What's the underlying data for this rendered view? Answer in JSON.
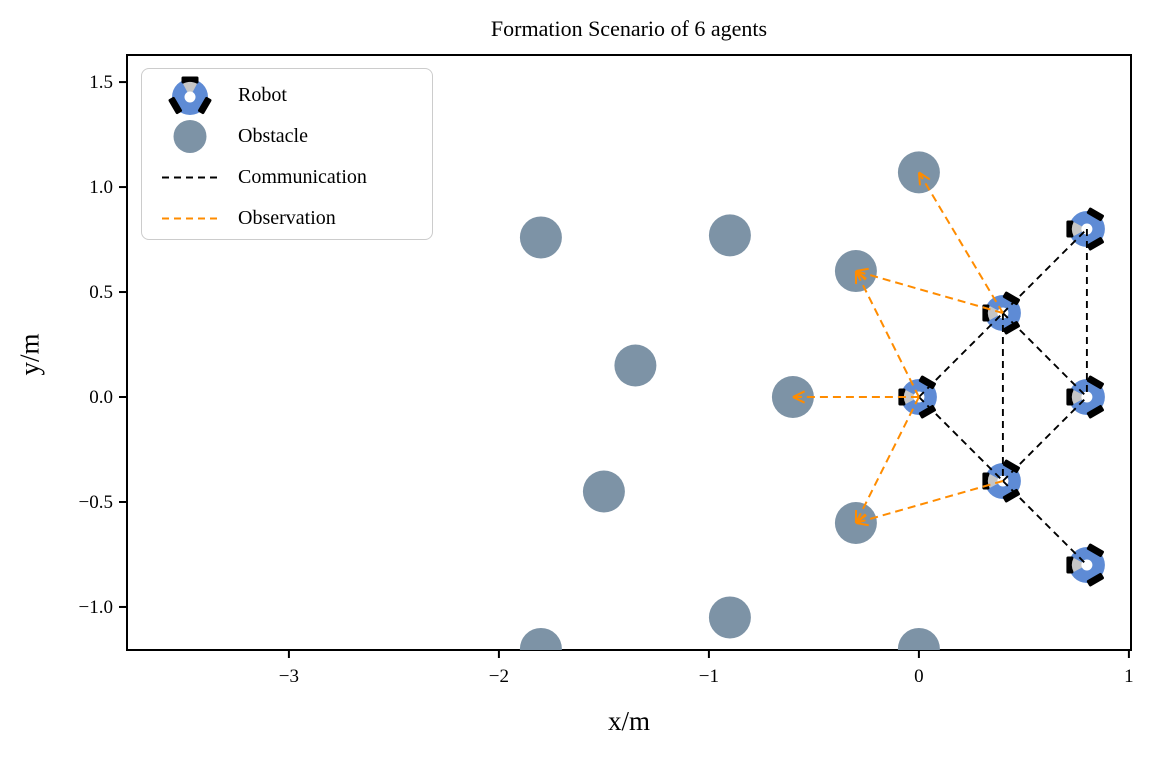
{
  "figure": {
    "title": "Formation Scenario of 6 agents",
    "xlabel": "x/m",
    "ylabel": "y/m"
  },
  "legend": {
    "items": [
      {
        "label": "Robot",
        "icon": "robot-icon"
      },
      {
        "label": "Obstacle",
        "icon": "obstacle-icon"
      },
      {
        "label": "Communication",
        "icon": "communication-line-icon"
      },
      {
        "label": "Observation",
        "icon": "observation-line-icon"
      }
    ]
  },
  "chart_data": {
    "type": "scatter",
    "title": "Formation Scenario of 6 agents",
    "xlabel": "x/m",
    "ylabel": "y/m",
    "xlim": [
      -3.771,
      1.01
    ],
    "ylim": [
      -1.205,
      1.629
    ],
    "xticks": [
      -3,
      -2,
      -1,
      0,
      1
    ],
    "xtick_labels": [
      "−3",
      "−2",
      "−1",
      "0",
      "1"
    ],
    "yticks": [
      1.5,
      1.0,
      0.5,
      0.0,
      -0.5,
      -1.0
    ],
    "ytick_labels": [
      "1.5",
      "1.0",
      "0.5",
      "0.0",
      "−0.5",
      "−1.0"
    ],
    "grid": false,
    "legend_position": "upper left",
    "robots": [
      {
        "x": 0.0,
        "y": 0.0,
        "heading_deg": 180
      },
      {
        "x": 0.4,
        "y": 0.4,
        "heading_deg": 180
      },
      {
        "x": 0.4,
        "y": -0.4,
        "heading_deg": 180
      },
      {
        "x": 0.8,
        "y": 0.8,
        "heading_deg": 180
      },
      {
        "x": 0.8,
        "y": 0.0,
        "heading_deg": 180
      },
      {
        "x": 0.8,
        "y": -0.8,
        "heading_deg": 180
      }
    ],
    "obstacles": [
      {
        "x": -1.8,
        "y": 0.76
      },
      {
        "x": -0.9,
        "y": 0.77
      },
      {
        "x": 0.0,
        "y": 1.07
      },
      {
        "x": -0.3,
        "y": 0.6
      },
      {
        "x": -1.35,
        "y": 0.15
      },
      {
        "x": -0.6,
        "y": 0.0
      },
      {
        "x": -1.5,
        "y": -0.45
      },
      {
        "x": -0.3,
        "y": -0.6
      },
      {
        "x": -0.9,
        "y": -1.05
      },
      {
        "x": -1.8,
        "y": -1.2
      },
      {
        "x": 0.0,
        "y": -1.2
      }
    ],
    "obstacle_radius_m": 0.1,
    "robot_radius_m": 0.086,
    "communication_edges": [
      [
        [
          0.0,
          0.0
        ],
        [
          0.4,
          0.4
        ]
      ],
      [
        [
          0.0,
          0.0
        ],
        [
          0.4,
          -0.4
        ]
      ],
      [
        [
          0.4,
          0.4
        ],
        [
          0.4,
          -0.4
        ]
      ],
      [
        [
          0.4,
          0.4
        ],
        [
          0.8,
          0.8
        ]
      ],
      [
        [
          0.4,
          0.4
        ],
        [
          0.8,
          0.0
        ]
      ],
      [
        [
          0.4,
          -0.4
        ],
        [
          0.8,
          0.0
        ]
      ],
      [
        [
          0.4,
          -0.4
        ],
        [
          0.8,
          -0.8
        ]
      ],
      [
        [
          0.8,
          0.8
        ],
        [
          0.8,
          0.0
        ]
      ]
    ],
    "observation_edges": [
      [
        [
          0.4,
          0.4
        ],
        [
          0.0,
          1.07
        ]
      ],
      [
        [
          0.4,
          0.4
        ],
        [
          -0.3,
          0.6
        ]
      ],
      [
        [
          0.0,
          0.0
        ],
        [
          -0.3,
          0.6
        ]
      ],
      [
        [
          0.0,
          0.0
        ],
        [
          -0.6,
          0.0
        ]
      ],
      [
        [
          0.0,
          0.0
        ],
        [
          -0.3,
          -0.6
        ]
      ],
      [
        [
          0.4,
          -0.4
        ],
        [
          -0.3,
          -0.6
        ]
      ]
    ],
    "colors": {
      "robot_body": "#5e8bd5",
      "robot_wheel": "#000000",
      "robot_wedge": "#c6c6c6",
      "robot_center": "#ffffff",
      "obstacle": "#7d93a6",
      "communication": "#000000",
      "observation": "#ff8c00",
      "spine": "#000000"
    }
  }
}
